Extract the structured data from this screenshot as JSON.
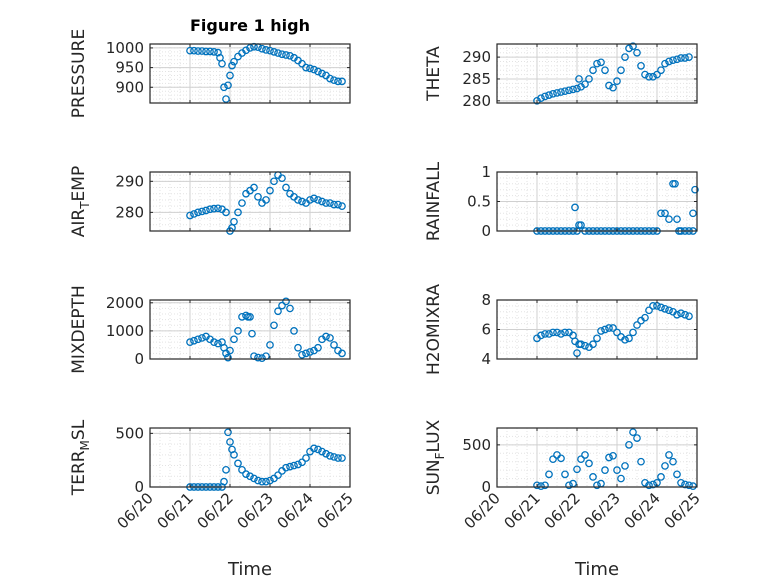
{
  "chart_data": [
    {
      "type": "scatter",
      "title": "Figure 1 high",
      "ylabel": "PRESSURE",
      "yticks": [
        "900",
        "950",
        "1000"
      ],
      "xticks": [],
      "xlabel": "",
      "ylim": [
        860,
        1010
      ],
      "x": [
        21.0,
        21.1,
        21.2,
        21.3,
        21.4,
        21.5,
        21.6,
        21.7,
        21.75,
        21.8,
        21.85,
        21.9,
        21.95,
        22.0,
        22.05,
        22.1,
        22.2,
        22.3,
        22.4,
        22.5,
        22.6,
        22.7,
        22.8,
        22.9,
        23.0,
        23.1,
        23.2,
        23.3,
        23.4,
        23.5,
        23.6,
        23.7,
        23.8,
        23.9,
        24.0,
        24.1,
        24.2,
        24.3,
        24.4,
        24.5,
        24.6,
        24.7,
        24.8
      ],
      "y": [
        993,
        993,
        992,
        992,
        991,
        991,
        990,
        988,
        975,
        960,
        900,
        870,
        905,
        930,
        955,
        965,
        978,
        987,
        994,
        1000,
        1003,
        1002,
        998,
        995,
        993,
        990,
        987,
        984,
        982,
        980,
        975,
        968,
        960,
        950,
        948,
        945,
        940,
        935,
        930,
        922,
        918,
        915,
        915
      ]
    },
    {
      "type": "scatter",
      "title": "",
      "ylabel": "THETA",
      "yticks": [
        "280",
        "285",
        "290"
      ],
      "xticks": [],
      "xlabel": "",
      "ylim": [
        279.5,
        293
      ],
      "x": [
        21.0,
        21.1,
        21.2,
        21.3,
        21.4,
        21.5,
        21.6,
        21.7,
        21.8,
        21.9,
        22.0,
        22.05,
        22.1,
        22.2,
        22.3,
        22.4,
        22.5,
        22.6,
        22.7,
        22.8,
        22.9,
        23.0,
        23.1,
        23.2,
        23.3,
        23.4,
        23.5,
        23.6,
        23.7,
        23.8,
        23.9,
        24.0,
        24.1,
        24.2,
        24.3,
        24.4,
        24.5,
        24.6,
        24.7,
        24.8
      ],
      "y": [
        280,
        280.6,
        281,
        281.3,
        281.6,
        281.8,
        282,
        282.2,
        282.4,
        282.6,
        282.8,
        285,
        283.2,
        283.8,
        285,
        287,
        288.5,
        288.8,
        287,
        283.5,
        283,
        284.5,
        287,
        290,
        292,
        292.5,
        291,
        288,
        286,
        285.5,
        285.5,
        286,
        287,
        288.5,
        289,
        289.3,
        289.5,
        289.8,
        289.8,
        290
      ]
    },
    {
      "type": "scatter",
      "title": "",
      "ylabel": "AIR_TEMP",
      "yticks": [
        "280",
        "290"
      ],
      "xticks": [],
      "xlabel": "",
      "ylim": [
        274,
        293
      ],
      "x": [
        21.0,
        21.1,
        21.2,
        21.3,
        21.4,
        21.5,
        21.6,
        21.7,
        21.8,
        21.9,
        22.0,
        22.05,
        22.1,
        22.2,
        22.3,
        22.4,
        22.5,
        22.6,
        22.7,
        22.8,
        22.9,
        23.0,
        23.1,
        23.2,
        23.3,
        23.4,
        23.5,
        23.6,
        23.7,
        23.8,
        23.9,
        24.0,
        24.1,
        24.2,
        24.3,
        24.4,
        24.5,
        24.6,
        24.7,
        24.8
      ],
      "y": [
        279,
        279.5,
        280,
        280.3,
        280.6,
        281,
        281.2,
        281.3,
        281,
        280,
        274,
        275,
        277,
        280,
        283,
        286,
        287,
        288,
        285,
        283,
        284,
        287,
        290,
        292,
        291,
        288,
        286,
        285,
        284,
        283.5,
        283,
        284,
        284.5,
        284,
        283.5,
        283,
        283,
        282.5,
        282.5,
        282
      ]
    },
    {
      "type": "scatter",
      "title": "",
      "ylabel": "RAINFALL",
      "yticks": [
        "0",
        "0.5",
        "1"
      ],
      "xticks": [],
      "xlabel": "",
      "ylim": [
        0,
        1
      ],
      "x": [
        21.0,
        21.1,
        21.2,
        21.3,
        21.4,
        21.5,
        21.6,
        21.7,
        21.8,
        21.9,
        21.95,
        22.0,
        22.05,
        22.1,
        22.2,
        22.3,
        22.4,
        22.5,
        22.6,
        22.7,
        22.8,
        22.9,
        23.0,
        23.1,
        23.2,
        23.3,
        23.4,
        23.5,
        23.6,
        23.7,
        23.8,
        23.9,
        24.0,
        24.1,
        24.2,
        24.3,
        24.4,
        24.45,
        24.5,
        24.55,
        24.6,
        24.7,
        24.8,
        24.9,
        24.9,
        24.95
      ],
      "y": [
        0,
        0,
        0,
        0,
        0,
        0,
        0,
        0,
        0,
        0,
        0.4,
        0,
        0.1,
        0.1,
        0,
        0,
        0,
        0,
        0,
        0,
        0,
        0,
        0,
        0,
        0,
        0,
        0,
        0,
        0,
        0,
        0,
        0,
        0,
        0.3,
        0.3,
        0.2,
        0.8,
        0.8,
        0.2,
        0,
        0,
        0,
        0,
        0,
        0.3,
        0.7
      ]
    },
    {
      "type": "scatter",
      "title": "",
      "ylabel": "MIXDEPTH",
      "yticks": [
        "0",
        "1000",
        "2000"
      ],
      "xticks": [],
      "xlabel": "",
      "ylim": [
        0,
        2100
      ],
      "x": [
        21.0,
        21.1,
        21.2,
        21.3,
        21.4,
        21.5,
        21.6,
        21.7,
        21.8,
        21.85,
        21.9,
        21.95,
        22.0,
        22.1,
        22.2,
        22.3,
        22.4,
        22.45,
        22.5,
        22.55,
        22.6,
        22.7,
        22.8,
        22.9,
        23.0,
        23.1,
        23.2,
        23.3,
        23.4,
        23.5,
        23.6,
        23.7,
        23.8,
        23.9,
        24.0,
        24.1,
        24.2,
        24.3,
        24.4,
        24.5,
        24.6,
        24.7,
        24.8
      ],
      "y": [
        600,
        650,
        700,
        750,
        800,
        700,
        600,
        550,
        600,
        400,
        200,
        50,
        300,
        700,
        1000,
        1500,
        1550,
        1500,
        1500,
        900,
        100,
        50,
        30,
        100,
        500,
        1200,
        1700,
        1900,
        2050,
        1800,
        1000,
        400,
        150,
        200,
        250,
        300,
        400,
        700,
        800,
        750,
        500,
        300,
        200
      ]
    },
    {
      "type": "scatter",
      "title": "",
      "ylabel": "H2OMIXRA",
      "yticks": [
        "4",
        "6",
        "8"
      ],
      "xticks": [],
      "xlabel": "",
      "ylim": [
        4,
        8
      ],
      "x": [
        21.0,
        21.1,
        21.2,
        21.3,
        21.4,
        21.5,
        21.6,
        21.7,
        21.8,
        21.9,
        21.95,
        22.0,
        22.05,
        22.1,
        22.2,
        22.3,
        22.4,
        22.5,
        22.6,
        22.7,
        22.8,
        22.9,
        23.0,
        23.1,
        23.2,
        23.3,
        23.4,
        23.5,
        23.6,
        23.7,
        23.8,
        23.9,
        24.0,
        24.1,
        24.2,
        24.3,
        24.4,
        24.5,
        24.6,
        24.7,
        24.8
      ],
      "y": [
        5.4,
        5.6,
        5.7,
        5.7,
        5.8,
        5.8,
        5.7,
        5.8,
        5.8,
        5.6,
        5.2,
        4.4,
        5.0,
        5.0,
        4.9,
        4.8,
        5.0,
        5.4,
        5.9,
        6.0,
        6.1,
        6.1,
        5.8,
        5.5,
        5.3,
        5.4,
        5.8,
        6.3,
        6.6,
        6.8,
        7.3,
        7.6,
        7.6,
        7.5,
        7.4,
        7.3,
        7.2,
        7.0,
        7.1,
        7.0,
        6.9
      ]
    },
    {
      "type": "scatter",
      "title": "",
      "ylabel": "TERR_MSL",
      "yticks": [
        "0",
        "500"
      ],
      "xticks": [
        "06/20",
        "06/21",
        "06/22",
        "06/23",
        "06/24",
        "06/25"
      ],
      "xlabel": "Time",
      "ylim": [
        0,
        550
      ],
      "x": [
        21.0,
        21.1,
        21.2,
        21.3,
        21.4,
        21.5,
        21.6,
        21.7,
        21.8,
        21.85,
        21.9,
        21.95,
        22.0,
        22.05,
        22.1,
        22.2,
        22.3,
        22.4,
        22.5,
        22.6,
        22.7,
        22.8,
        22.9,
        23.0,
        23.1,
        23.2,
        23.3,
        23.4,
        23.5,
        23.6,
        23.7,
        23.8,
        23.9,
        24.0,
        24.1,
        24.2,
        24.3,
        24.4,
        24.5,
        24.6,
        24.7,
        24.8
      ],
      "y": [
        0,
        0,
        0,
        0,
        0,
        0,
        0,
        0,
        0,
        50,
        160,
        510,
        420,
        350,
        300,
        220,
        160,
        120,
        100,
        80,
        60,
        50,
        50,
        60,
        80,
        110,
        150,
        180,
        190,
        200,
        210,
        230,
        270,
        330,
        360,
        350,
        330,
        310,
        290,
        280,
        270,
        270
      ]
    },
    {
      "type": "scatter",
      "title": "",
      "ylabel": "SUN_FLUX",
      "yticks": [
        "0",
        "500"
      ],
      "xticks": [
        "06/20",
        "06/21",
        "06/22",
        "06/23",
        "06/24",
        "06/25"
      ],
      "xlabel": "Time",
      "ylim": [
        0,
        700
      ],
      "x": [
        21.0,
        21.1,
        21.2,
        21.3,
        21.4,
        21.5,
        21.6,
        21.7,
        21.8,
        21.9,
        22.0,
        22.1,
        22.2,
        22.3,
        22.4,
        22.5,
        22.6,
        22.7,
        22.8,
        22.9,
        23.0,
        23.1,
        23.2,
        23.3,
        23.4,
        23.5,
        23.6,
        23.7,
        23.8,
        23.9,
        24.0,
        24.1,
        24.2,
        24.3,
        24.4,
        24.5,
        24.6,
        24.7,
        24.8,
        24.9
      ],
      "y": [
        20,
        10,
        20,
        150,
        330,
        380,
        340,
        150,
        20,
        40,
        210,
        330,
        380,
        280,
        120,
        20,
        40,
        200,
        350,
        370,
        200,
        100,
        250,
        500,
        650,
        580,
        300,
        50,
        20,
        30,
        50,
        120,
        250,
        380,
        300,
        150,
        50,
        30,
        20,
        10
      ]
    }
  ]
}
